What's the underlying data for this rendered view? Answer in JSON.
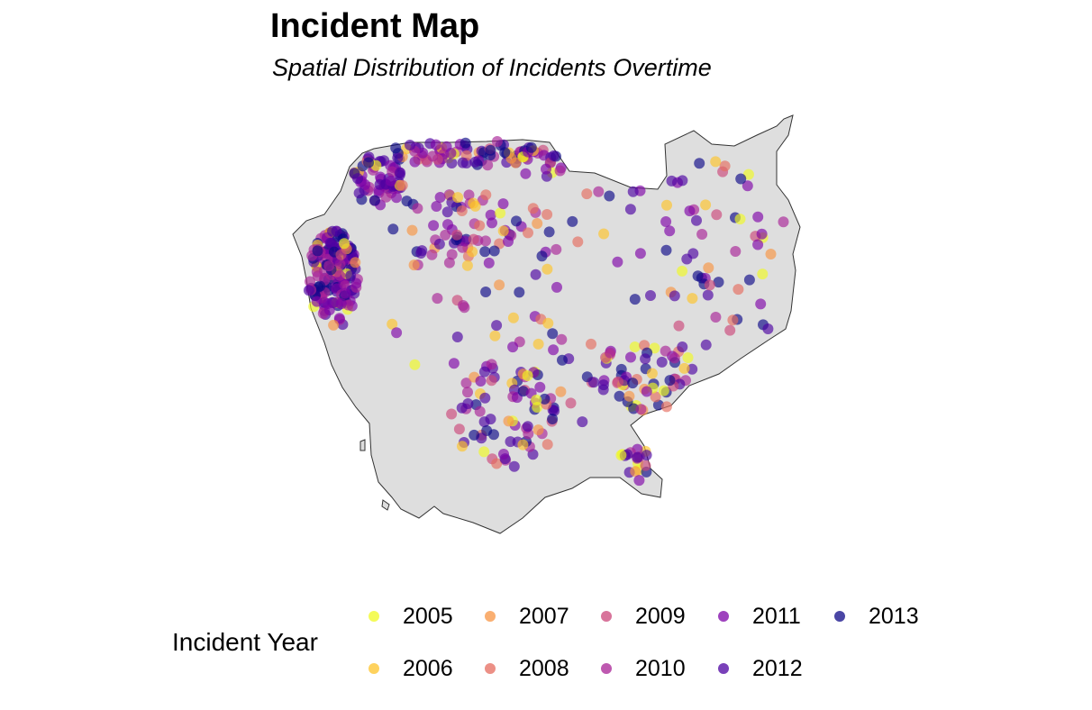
{
  "title": "Incident Map",
  "subtitle": "Spatial Distribution of Incidents Overtime",
  "legend": {
    "title": "Incident Year",
    "items": [
      {
        "label": "2005",
        "color": "#F0F921"
      },
      {
        "label": "2006",
        "color": "#FDC328"
      },
      {
        "label": "2007",
        "color": "#F89441"
      },
      {
        "label": "2008",
        "color": "#E56B5D"
      },
      {
        "label": "2009",
        "color": "#CB4679"
      },
      {
        "label": "2010",
        "color": "#A82296"
      },
      {
        "label": "2011",
        "color": "#7E03A8"
      },
      {
        "label": "2012",
        "color": "#4C02A1"
      },
      {
        "label": "2013",
        "color": "#0D0887"
      }
    ]
  },
  "map": {
    "region_fill": "#DEDEDE",
    "region_stroke": "#333333"
  }
}
